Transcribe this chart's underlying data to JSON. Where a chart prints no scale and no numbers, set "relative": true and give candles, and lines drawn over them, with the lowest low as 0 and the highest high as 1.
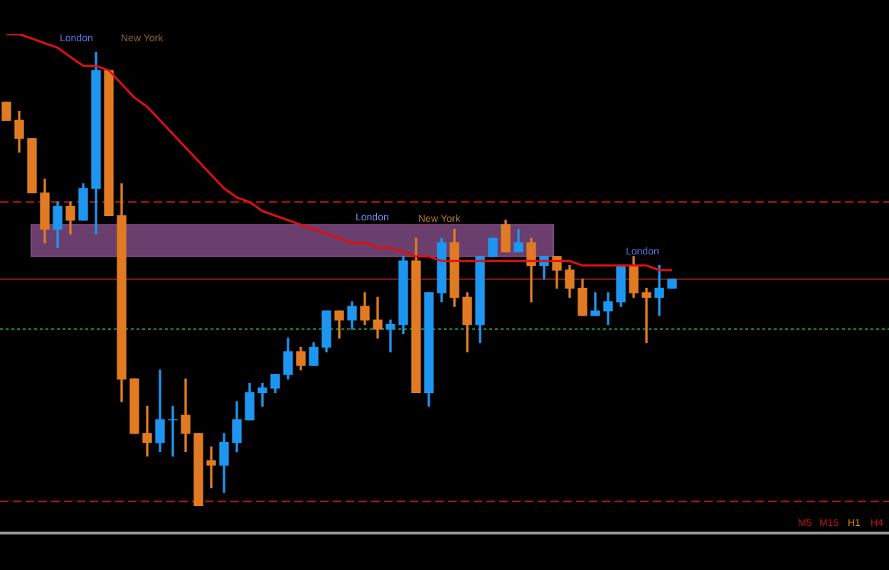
{
  "chart_data": {
    "type": "candlestick",
    "relative": true,
    "categories": [
      null,
      null,
      null,
      null,
      null,
      null,
      null,
      null,
      null,
      null,
      null,
      null,
      null,
      null,
      null,
      null,
      null,
      null,
      null,
      null,
      null,
      null,
      null,
      null,
      null,
      null,
      null,
      null,
      null,
      null,
      null,
      null,
      null,
      null,
      null,
      null,
      null,
      null,
      null,
      null,
      null,
      null,
      null,
      null,
      null,
      null,
      null,
      null,
      null,
      null,
      null,
      null,
      null
    ],
    "ohlc": [
      [
        0.89,
        0.89,
        0.85,
        0.85
      ],
      [
        0.85,
        0.87,
        0.78,
        0.81
      ],
      [
        0.81,
        0.81,
        0.69,
        0.69
      ],
      [
        0.69,
        0.72,
        0.58,
        0.61
      ],
      [
        0.61,
        0.67,
        0.57,
        0.66
      ],
      [
        0.66,
        0.67,
        0.6,
        0.63
      ],
      [
        0.63,
        0.71,
        0.63,
        0.7
      ],
      [
        0.7,
        1,
        0.6,
        0.96
      ],
      [
        0.96,
        0.96,
        0.64,
        0.64
      ],
      [
        0.64,
        0.71,
        0.23,
        0.28
      ],
      [
        0.28,
        0.28,
        0.16,
        0.16
      ],
      [
        0.16,
        0.22,
        0.11,
        0.14
      ],
      [
        0.14,
        0.3,
        0.12,
        0.19
      ],
      [
        0.19,
        0.22,
        0.11,
        0.19
      ],
      [
        0.2,
        0.28,
        0.12,
        0.16
      ],
      [
        0.16,
        0.16,
        0,
        0
      ],
      [
        0.1,
        0.13,
        0.04,
        0.09
      ],
      [
        0.09,
        0.16,
        0.03,
        0.14
      ],
      [
        0.14,
        0.23,
        0.12,
        0.19
      ],
      [
        0.19,
        0.27,
        0.19,
        0.25
      ],
      [
        0.25,
        0.27,
        0.22,
        0.26
      ],
      [
        0.26,
        0.29,
        0.25,
        0.29
      ],
      [
        0.29,
        0.37,
        0.28,
        0.34
      ],
      [
        0.34,
        0.35,
        0.3,
        0.31
      ],
      [
        0.31,
        0.36,
        0.31,
        0.35
      ],
      [
        0.35,
        0.43,
        0.34,
        0.43
      ],
      [
        0.43,
        0.43,
        0.37,
        0.41
      ],
      [
        0.41,
        0.45,
        0.39,
        0.44
      ],
      [
        0.44,
        0.47,
        0.4,
        0.41
      ],
      [
        0.41,
        0.46,
        0.37,
        0.39
      ],
      [
        0.39,
        0.41,
        0.34,
        0.4
      ],
      [
        0.4,
        0.55,
        0.38,
        0.54
      ],
      [
        0.54,
        0.59,
        0.25,
        0.25
      ],
      [
        0.25,
        0.47,
        0.22,
        0.47
      ],
      [
        0.47,
        0.59,
        0.45,
        0.58
      ],
      [
        0.58,
        0.61,
        0.44,
        0.46
      ],
      [
        0.46,
        0.47,
        0.34,
        0.4
      ],
      [
        0.4,
        0.55,
        0.36,
        0.55
      ],
      [
        0.55,
        0.59,
        0.55,
        0.59
      ],
      [
        0.62,
        0.63,
        0.56,
        0.56
      ],
      [
        0.56,
        0.61,
        0.56,
        0.58
      ],
      [
        0.58,
        0.59,
        0.45,
        0.53
      ],
      [
        0.53,
        0.55,
        0.5,
        0.55
      ],
      [
        0.55,
        0.55,
        0.48,
        0.52
      ],
      [
        0.52,
        0.53,
        0.46,
        0.48
      ],
      [
        0.48,
        0.5,
        0.42,
        0.42
      ],
      [
        0.42,
        0.47,
        0.42,
        0.43
      ],
      [
        0.43,
        0.47,
        0.4,
        0.45
      ],
      [
        0.45,
        0.53,
        0.44,
        0.53
      ],
      [
        0.53,
        0.55,
        0.46,
        0.47
      ],
      [
        0.47,
        0.48,
        0.36,
        0.46
      ],
      [
        0.46,
        0.53,
        0.42,
        0.48
      ],
      [
        0.48,
        0.5,
        0.48,
        0.5
      ]
    ],
    "colors": [
      "#e07b24",
      "#e07b24",
      "#e07b24",
      "#e07b24",
      "#1e96f0",
      "#e07b24",
      "#1e96f0",
      "#1e96f0",
      "#e07b24",
      "#e07b24",
      "#e07b24",
      "#e07b24",
      "#1e96f0",
      "#1e96f0",
      "#e07b24",
      "#e07b24",
      "#e07b24",
      "#1e96f0",
      "#1e96f0",
      "#1e96f0",
      "#1e96f0",
      "#1e96f0",
      "#1e96f0",
      "#e07b24",
      "#1e96f0",
      "#1e96f0",
      "#e07b24",
      "#1e96f0",
      "#e07b24",
      "#e07b24",
      "#1e96f0",
      "#1e96f0",
      "#e07b24",
      "#1e96f0",
      "#1e96f0",
      "#e07b24",
      "#e07b24",
      "#1e96f0",
      "#1e96f0",
      "#e07b24",
      "#1e96f0",
      "#e07b24",
      "#1e96f0",
      "#e07b24",
      "#e07b24",
      "#e07b24",
      "#1e96f0",
      "#1e96f0",
      "#1e96f0",
      "#e07b24",
      "#e07b24",
      "#1e96f0",
      "#1e96f0"
    ],
    "series": [
      {
        "type": "line",
        "color": "#e01010",
        "values": [
          1.04,
          1.04,
          1.03,
          1.02,
          1.01,
          0.99,
          0.97,
          0.97,
          0.96,
          0.93,
          0.9,
          0.88,
          0.85,
          0.82,
          0.79,
          0.76,
          0.73,
          0.7,
          0.68,
          0.67,
          0.65,
          0.64,
          0.63,
          0.62,
          0.61,
          0.6,
          0.59,
          0.58,
          0.58,
          0.57,
          0.57,
          0.56,
          0.55,
          0.55,
          0.54,
          0.54,
          0.54,
          0.54,
          0.54,
          0.54,
          0.54,
          0.54,
          0.54,
          0.54,
          0.54,
          0.53,
          0.53,
          0.53,
          0.53,
          0.53,
          0.53,
          0.52,
          0.52
        ]
      }
    ],
    "ref_lines": [
      {
        "axis": "y",
        "value": 0.67,
        "color": "#c01818",
        "line_style": "dashed"
      },
      {
        "axis": "y",
        "value": 0.5,
        "color": "#8b1c1c",
        "line_style": "solid"
      },
      {
        "axis": "y",
        "value": 0.39,
        "color": "#1f8a3a",
        "line_style": "dotted"
      },
      {
        "axis": "y",
        "value": 0.01,
        "color": "#b01818",
        "line_style": "dashed"
      }
    ],
    "bands": [
      {
        "axis": "y",
        "from": 0.55,
        "to": 0.62,
        "color": "#7c4a80"
      }
    ],
    "annotations": [
      "London",
      "New York",
      "London",
      "New York",
      "London",
      "M5",
      "M15",
      "H1",
      "H4"
    ],
    "tick_labels": false,
    "legend": false,
    "marker": "none"
  }
}
